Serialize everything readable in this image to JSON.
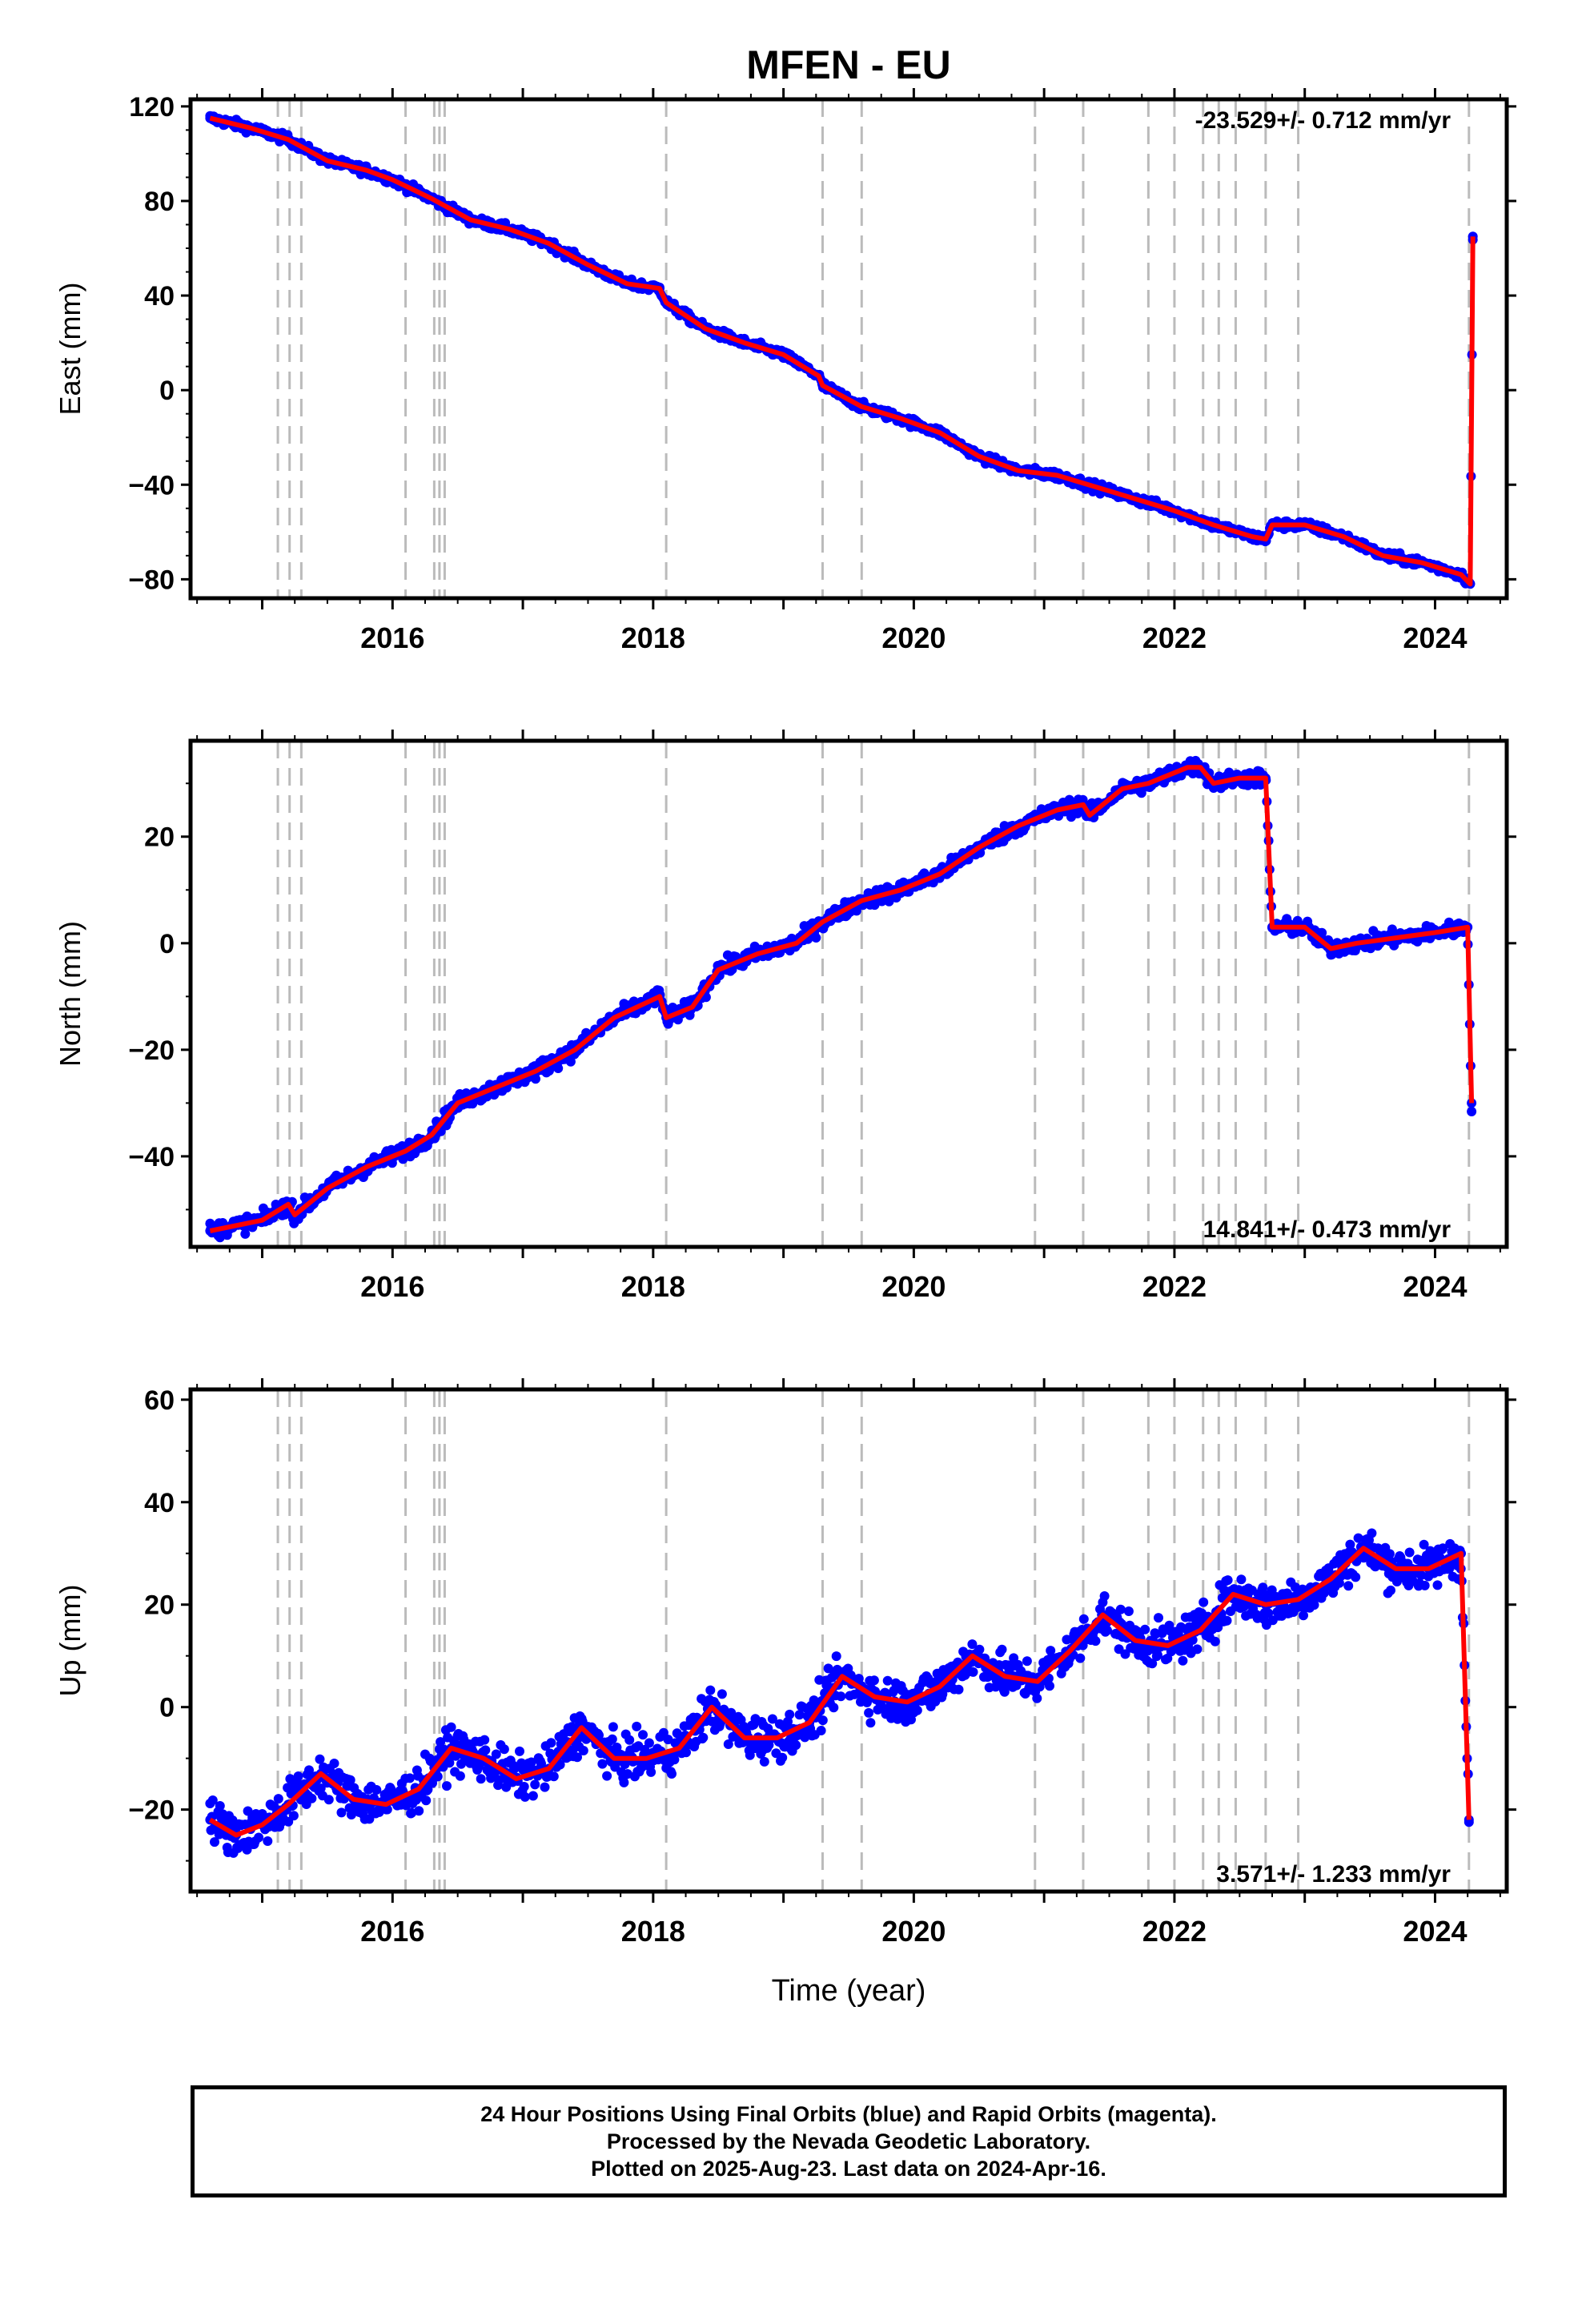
{
  "title": "MFEN - EU",
  "xlabel": "Time (year)",
  "colors": {
    "final_orbits": "#0000ff",
    "model": "#ff0000",
    "event_lines": "#bbbbbb"
  },
  "chart_data": [
    {
      "type": "scatter",
      "name": "east",
      "ylabel": "East (mm)",
      "rate_label": "-23.529+/- 0.712 mm/yr",
      "xlim": [
        2014.45,
        2024.55
      ],
      "ylim": [
        -88,
        123
      ],
      "yticks": [
        -80,
        -40,
        0,
        40,
        80,
        120
      ],
      "xticks": [
        2016,
        2018,
        2020,
        2022,
        2024
      ],
      "series": [
        {
          "name": "Final Orbits",
          "x": [
            2014.6,
            2014.9,
            2015.2,
            2015.5,
            2015.8,
            2016.0,
            2016.3,
            2016.6,
            2016.9,
            2017.2,
            2017.5,
            2017.8,
            2018.05,
            2018.1,
            2018.4,
            2018.7,
            2019.0,
            2019.27,
            2019.3,
            2019.6,
            2019.9,
            2020.2,
            2020.5,
            2020.8,
            2021.1,
            2021.4,
            2021.7,
            2022.0,
            2022.3,
            2022.6,
            2022.7,
            2022.75,
            2023.0,
            2023.3,
            2023.6,
            2023.9,
            2024.2,
            2024.27,
            2024.29
          ],
          "y": [
            115,
            111,
            106,
            97,
            93,
            89,
            81,
            72,
            68,
            62,
            53,
            45,
            43,
            37,
            26,
            20,
            15,
            6,
            2,
            -7,
            -12,
            -18,
            -28,
            -34,
            -36,
            -41,
            -46,
            -51,
            -57,
            -62,
            -63,
            -57,
            -57,
            -62,
            -70,
            -73,
            -78,
            -82,
            65
          ]
        }
      ],
      "model_x": [
        2014.6,
        2014.9,
        2015.2,
        2015.5,
        2015.8,
        2016.0,
        2016.3,
        2016.6,
        2016.9,
        2017.2,
        2017.5,
        2017.8,
        2018.05,
        2018.1,
        2018.4,
        2018.7,
        2019.0,
        2019.27,
        2019.3,
        2019.6,
        2019.9,
        2020.2,
        2020.5,
        2020.8,
        2021.1,
        2021.4,
        2021.7,
        2022.0,
        2022.3,
        2022.6,
        2022.7,
        2022.75,
        2023.0,
        2023.3,
        2023.6,
        2023.9,
        2024.2,
        2024.27,
        2024.29
      ],
      "model_y": [
        115,
        111,
        106,
        97,
        93,
        89,
        81,
        72,
        68,
        62,
        53,
        45,
        43,
        37,
        26,
        20,
        15,
        6,
        2,
        -7,
        -12,
        -18,
        -28,
        -34,
        -36,
        -41,
        -46,
        -51,
        -57,
        -62,
        -63,
        -57,
        -57,
        -62,
        -70,
        -73,
        -78,
        -82,
        65
      ]
    },
    {
      "type": "scatter",
      "name": "north",
      "ylabel": "North (mm)",
      "rate_label": "14.841+/- 0.473 mm/yr",
      "xlim": [
        2014.45,
        2024.55
      ],
      "ylim": [
        -57,
        38
      ],
      "yticks": [
        -40,
        -20,
        0,
        20
      ],
      "xticks": [
        2016,
        2018,
        2020,
        2022,
        2024
      ],
      "series": [
        {
          "name": "Final Orbits",
          "x": [
            2014.6,
            2015.0,
            2015.2,
            2015.25,
            2015.5,
            2015.8,
            2016.1,
            2016.3,
            2016.5,
            2016.8,
            2017.1,
            2017.4,
            2017.7,
            2018.05,
            2018.1,
            2018.3,
            2018.5,
            2018.8,
            2019.1,
            2019.3,
            2019.6,
            2019.9,
            2020.2,
            2020.5,
            2020.8,
            2021.1,
            2021.3,
            2021.35,
            2021.6,
            2021.8,
            2022.1,
            2022.2,
            2022.3,
            2022.5,
            2022.7,
            2022.75,
            2023.0,
            2023.2,
            2023.4,
            2023.7,
            2024.0,
            2024.25,
            2024.28
          ],
          "y": [
            -54,
            -52,
            -49,
            -51,
            -46,
            -42,
            -39,
            -36,
            -30,
            -27,
            -24,
            -20,
            -14,
            -10,
            -14,
            -12,
            -5,
            -2,
            0,
            4,
            8,
            10,
            13,
            18,
            22,
            25,
            26,
            24,
            29,
            30,
            33,
            33,
            30,
            31,
            31,
            3,
            3,
            -1,
            0,
            1,
            2,
            3,
            -30
          ]
        }
      ],
      "model_x": [
        2014.6,
        2015.0,
        2015.2,
        2015.25,
        2015.5,
        2015.8,
        2016.1,
        2016.3,
        2016.5,
        2016.8,
        2017.1,
        2017.4,
        2017.7,
        2018.05,
        2018.1,
        2018.3,
        2018.5,
        2018.8,
        2019.1,
        2019.3,
        2019.6,
        2019.9,
        2020.2,
        2020.5,
        2020.8,
        2021.1,
        2021.3,
        2021.35,
        2021.6,
        2021.8,
        2022.1,
        2022.2,
        2022.3,
        2022.5,
        2022.7,
        2022.75,
        2023.0,
        2023.2,
        2023.4,
        2023.7,
        2024.0,
        2024.25,
        2024.28
      ],
      "model_y": [
        -54,
        -52,
        -49,
        -51,
        -46,
        -42,
        -39,
        -36,
        -30,
        -27,
        -24,
        -20,
        -14,
        -10,
        -14,
        -12,
        -5,
        -2,
        0,
        4,
        8,
        10,
        13,
        18,
        22,
        25,
        26,
        24,
        29,
        30,
        33,
        33,
        30,
        31,
        31,
        3,
        3,
        -1,
        0,
        1,
        2,
        3,
        -30
      ]
    },
    {
      "type": "scatter",
      "name": "up",
      "ylabel": "Up (mm)",
      "rate_label": "3.571+/- 1.233 mm/yr",
      "xlim": [
        2014.45,
        2024.55
      ],
      "ylim": [
        -36,
        62
      ],
      "yticks": [
        -20,
        0,
        20,
        40,
        60
      ],
      "xticks": [
        2016,
        2018,
        2020,
        2022,
        2024
      ],
      "series": [
        {
          "name": "Final Orbits",
          "x": [
            2014.6,
            2014.8,
            2015.0,
            2015.2,
            2015.45,
            2015.7,
            2015.95,
            2016.2,
            2016.45,
            2016.7,
            2016.95,
            2017.2,
            2017.45,
            2017.7,
            2017.95,
            2018.2,
            2018.45,
            2018.7,
            2018.95,
            2019.2,
            2019.45,
            2019.7,
            2019.95,
            2020.2,
            2020.45,
            2020.7,
            2020.95,
            2021.2,
            2021.45,
            2021.7,
            2021.95,
            2022.2,
            2022.45,
            2022.7,
            2022.95,
            2023.2,
            2023.45,
            2023.7,
            2023.95,
            2024.2,
            2024.26
          ],
          "y": [
            -22,
            -25,
            -23,
            -19,
            -13,
            -18,
            -19,
            -16,
            -8,
            -10,
            -14,
            -12,
            -4,
            -10,
            -10,
            -8,
            0,
            -6,
            -6,
            -3,
            6,
            2,
            1,
            4,
            10,
            6,
            5,
            11,
            18,
            13,
            12,
            15,
            22,
            20,
            21,
            25,
            31,
            27,
            27,
            30,
            -22
          ]
        }
      ],
      "model_x": [
        2014.6,
        2014.8,
        2015.0,
        2015.2,
        2015.45,
        2015.7,
        2015.95,
        2016.2,
        2016.45,
        2016.7,
        2016.95,
        2017.2,
        2017.45,
        2017.7,
        2017.95,
        2018.2,
        2018.45,
        2018.7,
        2018.95,
        2019.2,
        2019.45,
        2019.7,
        2019.95,
        2020.2,
        2020.45,
        2020.7,
        2020.95,
        2021.2,
        2021.45,
        2021.7,
        2021.95,
        2022.2,
        2022.45,
        2022.7,
        2022.95,
        2023.2,
        2023.45,
        2023.7,
        2023.95,
        2024.2,
        2024.26
      ],
      "model_y": [
        -22,
        -25,
        -23,
        -19,
        -13,
        -18,
        -19,
        -16,
        -8,
        -10,
        -14,
        -12,
        -4,
        -10,
        -10,
        -8,
        0,
        -6,
        -6,
        -3,
        6,
        2,
        1,
        4,
        10,
        6,
        5,
        11,
        18,
        13,
        12,
        15,
        22,
        20,
        21,
        25,
        31,
        27,
        27,
        30,
        -22
      ]
    }
  ],
  "event_lines_x": [
    2015.12,
    2015.21,
    2015.3,
    2016.1,
    2016.32,
    2016.36,
    2016.4,
    2018.1,
    2019.3,
    2019.6,
    2020.93,
    2021.3,
    2021.8,
    2022.0,
    2022.22,
    2022.34,
    2022.47,
    2022.7,
    2022.95,
    2024.26
  ],
  "caption": {
    "line1": "24 Hour Positions Using Final Orbits (blue) and Rapid Orbits (magenta).",
    "line2": "Processed by the Nevada Geodetic Laboratory.",
    "line3": "Plotted on 2025-Aug-23. Last data on 2024-Apr-16."
  }
}
